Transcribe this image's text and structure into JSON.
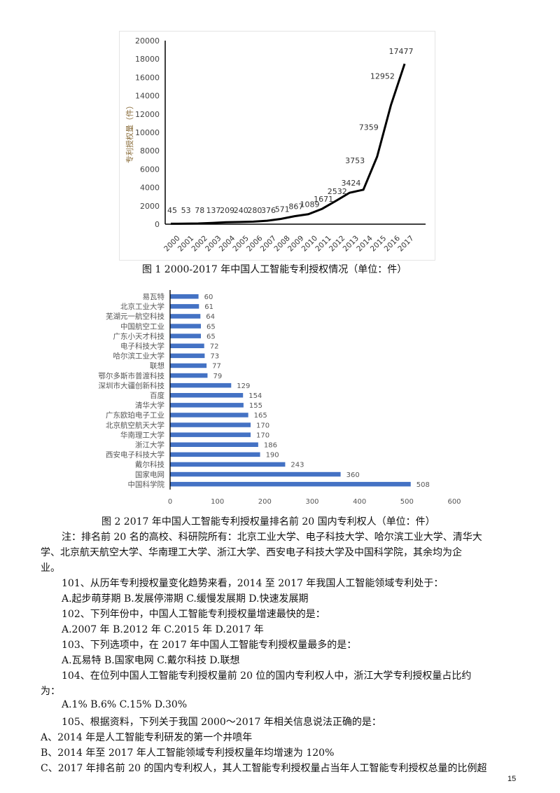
{
  "chart_data": [
    {
      "type": "line",
      "x": [
        "2000",
        "2001",
        "2002",
        "2003",
        "2004",
        "2005",
        "2006",
        "2007",
        "2008",
        "2009",
        "2010",
        "2011",
        "2012",
        "2013",
        "2014",
        "2015",
        "2016",
        "2017"
      ],
      "values": [
        45,
        53,
        78,
        137,
        209,
        240,
        280,
        376,
        571,
        867,
        1089,
        1671,
        2532,
        3424,
        3753,
        7359,
        12952,
        17477
      ],
      "ylabel": "专利授权量（件）",
      "ylim": [
        0,
        20000
      ],
      "yticks": [
        0,
        2000,
        4000,
        6000,
        8000,
        10000,
        12000,
        14000,
        16000,
        18000,
        20000
      ],
      "grid": false,
      "color": "#000000"
    },
    {
      "type": "bar",
      "orientation": "horizontal",
      "categories": [
        "易瓦特",
        "北京工业大学",
        "芜湖元一航空科技",
        "中国航空工业",
        "广东小天才科技",
        "电子科技大学",
        "哈尔滨工业大学",
        "联想",
        "鄂尔多斯市普渡科技",
        "深圳市大疆创新科技",
        "百度",
        "清华大学",
        "广东欧珀电子工业",
        "北京航空航天大学",
        "华南理工大学",
        "浙江大学",
        "西安电子科技大学",
        "戴尔科技",
        "国家电网",
        "中国科学院"
      ],
      "values": [
        60,
        61,
        64,
        65,
        65,
        72,
        73,
        77,
        79,
        129,
        154,
        155,
        165,
        170,
        170,
        186,
        190,
        243,
        360,
        508
      ],
      "xlim": [
        0,
        600
      ],
      "xticks": [
        0,
        100,
        200,
        300,
        400,
        500,
        600
      ],
      "grid": false,
      "color": "#4472c4"
    }
  ],
  "captions": {
    "fig1": "图 1  2000-2017 年中国人工智能专利授权情况（单位：件）",
    "fig2": "图 2     2017 年中国人工智能专利授权量排名前 20 国内专利权人（单位：件）"
  },
  "body": [
    {
      "t": "注：排名前 20 名的高校、科研院所有：北京工业大学、电子科技大学、哈尔滨工业大学、清华大",
      "ind": true
    },
    {
      "t": "学、北京航天航空大学、华南理工大学、浙江大学、西安电子科技大学及中国科学院，其余均为企",
      "ind": false
    },
    {
      "t": "业。",
      "ind": false
    },
    {
      "t": "101、从历年专利授权量变化趋势来看，2014 至 2017 年我国人工智能领域专利处于：",
      "ind": true
    },
    {
      "t": "A.起步萌芽期      B.发展停滞期      C.缓慢发展期      D.快速发展期",
      "ind": true
    },
    {
      "t": "102、下列年份中，中国人工智能专利授权量增速最快的是：",
      "ind": true
    },
    {
      "t": "A.2007 年      B.2012 年      C.2015 年      D.2017 年",
      "ind": true
    },
    {
      "t": "103、下列选项中，在 2017 年中国人工智能专利授权量最多的是：",
      "ind": true
    },
    {
      "t": "A.瓦易特      B.国家电网      C.戴尔科技      D.联想",
      "ind": true
    },
    {
      "t": "104、在位列中国人工智能专利授权量前 20 位的国内专利权人中，浙江大学专利授权量占比约",
      "ind": true
    },
    {
      "t": "为：",
      "ind": false
    },
    {
      "t": "A.1%      B.6%      C.15%      D.30%",
      "ind": true
    },
    {
      "t": "105、根据资料，下列关于我国 2000～2017 年相关信息说法正确的是：",
      "ind": true
    },
    {
      "t": "A、2014 年是人工智能专利研发的第一个井喷年",
      "ind": false
    },
    {
      "t": "B、2014 年至 2017 年人工智能领域专利授权量年均增速为 120%",
      "ind": false
    },
    {
      "t": "C、2017 年排名前 20 的国内专利权人，其人工智能专利授权量占当年人工智能专利授权总量的比例超",
      "ind": false
    }
  ],
  "page_number": "15"
}
